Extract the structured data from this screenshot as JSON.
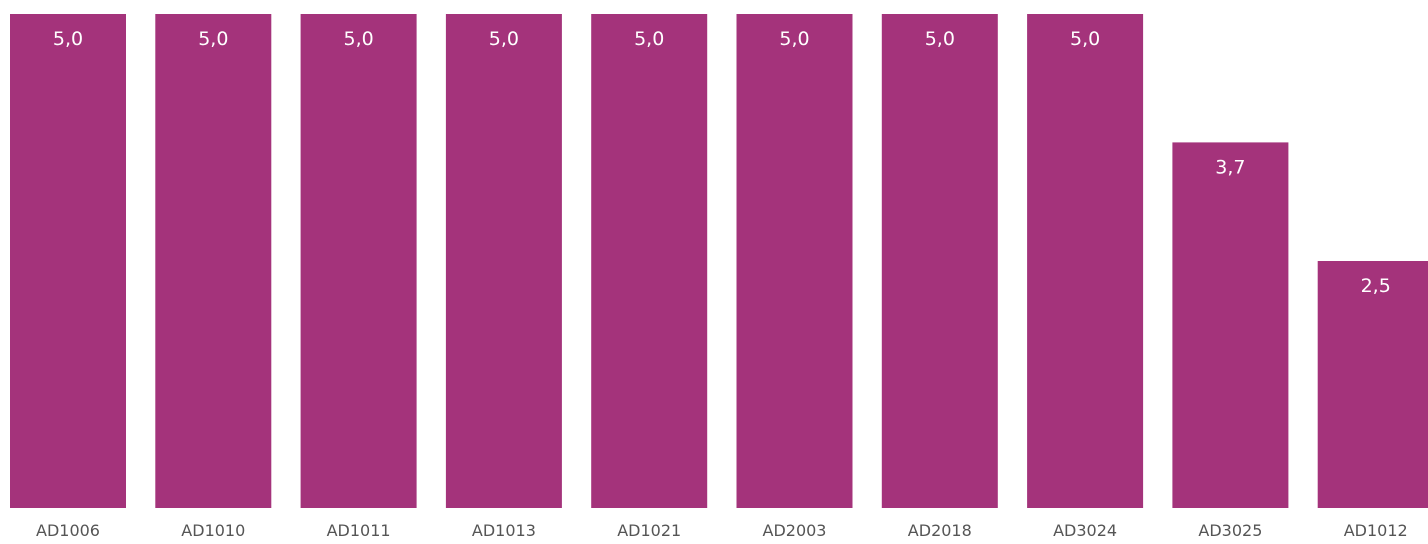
{
  "chart_data": {
    "type": "bar",
    "categories": [
      "AD1006",
      "AD1010",
      "AD1011",
      "AD1013",
      "AD1021",
      "AD2003",
      "AD2018",
      "AD3024",
      "AD3025",
      "AD1012"
    ],
    "values": [
      5.0,
      5.0,
      5.0,
      5.0,
      5.0,
      5.0,
      5.0,
      5.0,
      3.7,
      2.5
    ],
    "data_labels": [
      "5,0",
      "5,0",
      "5,0",
      "5,0",
      "5,0",
      "5,0",
      "5,0",
      "5,0",
      "3,7",
      "2,5"
    ],
    "title": "",
    "xlabel": "",
    "ylabel": "",
    "ylim": [
      0,
      5.0
    ],
    "grid": false,
    "bar_color": "#a4337b"
  }
}
